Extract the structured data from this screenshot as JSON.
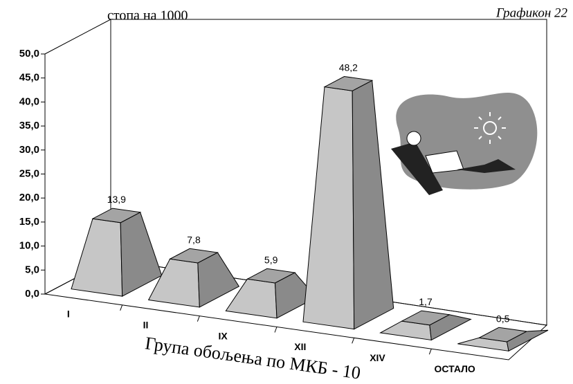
{
  "chart_data": {
    "type": "bar3d",
    "title": "Графикон 22",
    "y_label": "стопа на 1000",
    "x_label": "Група обољења по МКБ - 10",
    "categories": [
      "I",
      "II",
      "IX",
      "XII",
      "XIV",
      "ОСТАЛО"
    ],
    "values": [
      13.9,
      7.8,
      5.9,
      48.2,
      1.7,
      0.5
    ],
    "value_labels": [
      "13,9",
      "7,8",
      "5,9",
      "48,2",
      "1,7",
      "0,5"
    ],
    "ylim": [
      0,
      50
    ],
    "yticks": [
      {
        "value": 0,
        "label": "0,0"
      },
      {
        "value": 5,
        "label": "5,0"
      },
      {
        "value": 10,
        "label": "10,0"
      },
      {
        "value": 15,
        "label": "15,0"
      },
      {
        "value": 20,
        "label": "20,0"
      },
      {
        "value": 25,
        "label": "25,0"
      },
      {
        "value": 30,
        "label": "30,0"
      },
      {
        "value": 35,
        "label": "35,0"
      },
      {
        "value": 40,
        "label": "40,0"
      },
      {
        "value": 45,
        "label": "45,0"
      },
      {
        "value": 50,
        "label": "50,0"
      }
    ],
    "colors": {
      "front": "#c6c6c6",
      "side": "#8a8a8a",
      "top": "#a4a4a4"
    }
  }
}
